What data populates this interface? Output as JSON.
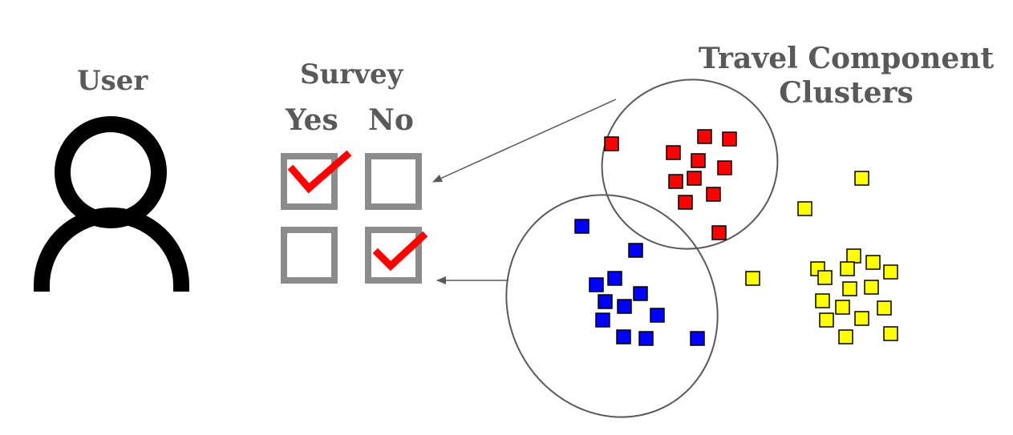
{
  "labels": {
    "user": "User",
    "survey": "Survey",
    "yes": "Yes",
    "no": "No",
    "clusters_line1": "Travel Component",
    "clusters_line2": "Clusters"
  },
  "colors": {
    "text": "#595959",
    "checkbox_border": "#8c8c8c",
    "checkmark": "#ff0000",
    "person": "#000000",
    "ellipse": "#595959",
    "arrow": "#595959",
    "cluster_red": "#ff0000",
    "cluster_blue": "#0000ff",
    "cluster_yellow": "#ffff00"
  },
  "icons": {
    "person": "user-icon",
    "check": "check-mark-icon"
  },
  "survey": {
    "rows": [
      {
        "yes_checked": true,
        "no_checked": false
      },
      {
        "yes_checked": false,
        "no_checked": true
      }
    ]
  },
  "clusters": [
    {
      "color": "red"
    },
    {
      "color": "blue"
    },
    {
      "color": "yellow"
    }
  ]
}
